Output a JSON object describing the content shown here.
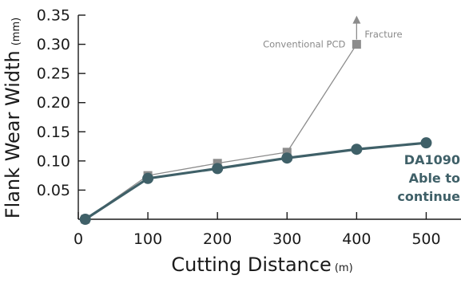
{
  "chart_data": {
    "type": "line",
    "xlabel": "Cutting Distance",
    "xunit": "(m)",
    "ylabel": "Flank Wear Width",
    "yunit": "(mm)",
    "xlim": [
      0,
      550
    ],
    "ylim": [
      0,
      0.35
    ],
    "x_ticks": [
      0,
      100,
      200,
      300,
      400,
      500
    ],
    "x_tick_labels": [
      "0",
      "100",
      "200",
      "300",
      "400",
      "500"
    ],
    "y_ticks": [
      0.05,
      0.1,
      0.15,
      0.2,
      0.25,
      0.3,
      0.35
    ],
    "y_tick_labels": [
      "0.05",
      "0.10",
      "0.15",
      "0.20",
      "0.25",
      "0.30",
      "0.35"
    ],
    "grid": false,
    "series": [
      {
        "name": "Conventional PCD",
        "color": "#8c8c8c",
        "marker": "square",
        "x": [
          10,
          100,
          200,
          300,
          400
        ],
        "y": [
          0.0,
          0.075,
          0.096,
          0.115,
          0.3
        ]
      },
      {
        "name": "DA1090",
        "color": "#3f6068",
        "marker": "circle",
        "x": [
          10,
          100,
          200,
          300,
          400,
          500
        ],
        "y": [
          0.0,
          0.07,
          0.087,
          0.105,
          0.12,
          0.131
        ]
      }
    ],
    "annotations": {
      "fracture_label": "Fracture",
      "fracture_arrow": {
        "x": 400,
        "y_from": 0.3,
        "y_to": 0.345
      },
      "conventional_label": "Conventional PCD",
      "da1090_lines": [
        "DA1090",
        "Able to",
        "continue"
      ]
    }
  }
}
